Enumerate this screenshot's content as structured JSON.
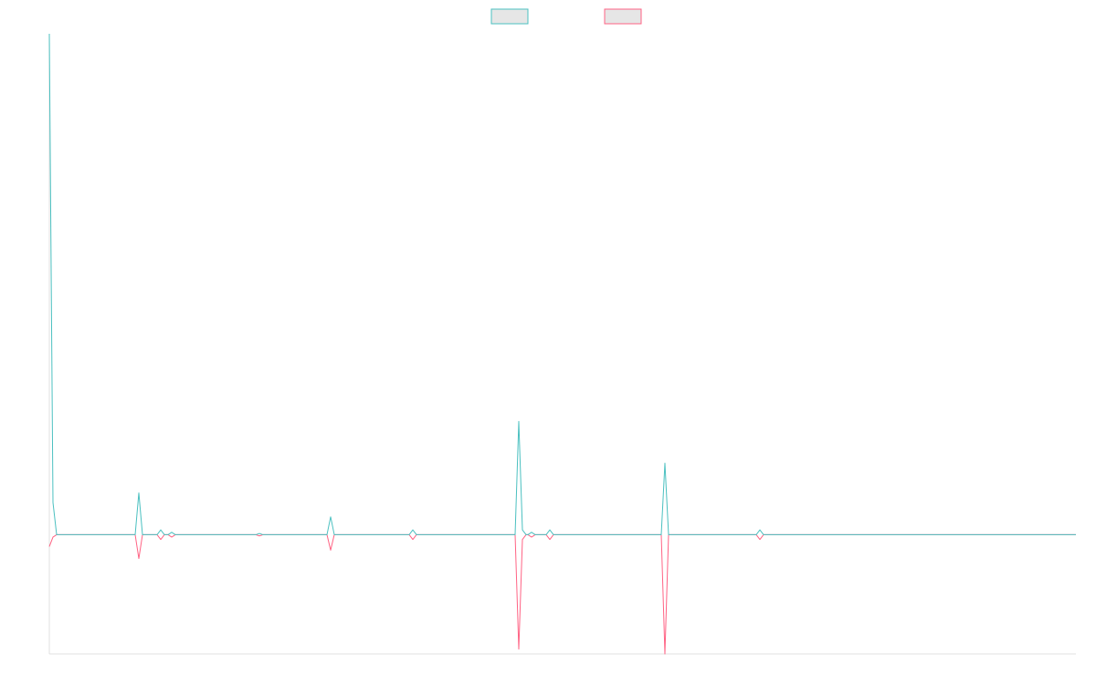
{
  "chart_data": {
    "type": "line",
    "x": [
      0,
      2,
      4,
      47,
      49,
      51,
      59,
      61,
      63,
      65,
      67,
      69,
      113,
      115,
      117,
      152,
      154,
      156,
      197,
      199,
      201,
      255,
      257,
      259,
      261,
      262,
      264,
      266,
      272,
      274,
      276,
      335,
      337,
      339,
      387,
      389,
      391,
      562
    ],
    "series": [
      {
        "color": "#ff6384",
        "values": [
          -10,
          -2,
          0,
          0,
          -20,
          0,
          0,
          -4,
          0,
          0,
          -2,
          0,
          0,
          -1,
          0,
          0,
          -13,
          0,
          0,
          -4,
          0,
          0,
          -96,
          -4,
          0,
          0,
          -2,
          0,
          0,
          -4,
          0,
          0,
          -100,
          0,
          0,
          -4,
          0,
          0
        ]
      },
      {
        "color": "#4bc0c0",
        "values": [
          420,
          27,
          0,
          0,
          35,
          0,
          0,
          4,
          0,
          0,
          2,
          0,
          0,
          1,
          0,
          0,
          15,
          0,
          0,
          4,
          0,
          0,
          95,
          4,
          0,
          0,
          2,
          0,
          0,
          4,
          0,
          0,
          60,
          0,
          0,
          4,
          0,
          0
        ]
      }
    ],
    "xlim": [
      0,
      562
    ],
    "ylim": [
      -100,
      420
    ],
    "grid": false,
    "legend": "top"
  }
}
